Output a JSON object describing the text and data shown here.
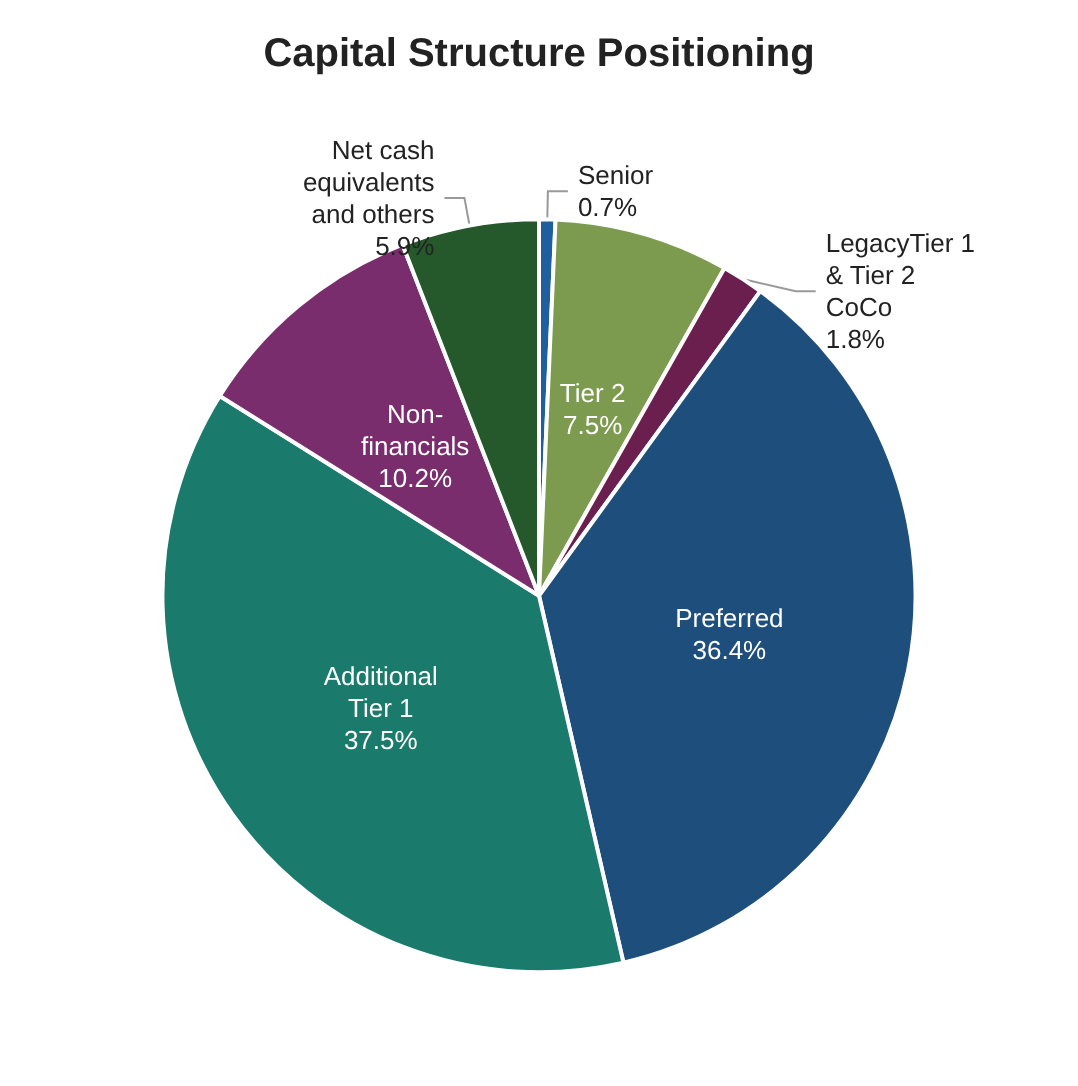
{
  "chart_data": {
    "type": "pie",
    "title": "Capital Structure Positioning",
    "categories": [
      "Senior",
      "Tier 2",
      "LegacyTier 1\n& Tier 2\nCoCo",
      "Preferred",
      "Additional\nTier 1",
      "Non-\nfinancials",
      "Net cash\nequivalents\nand others"
    ],
    "values": [
      0.7,
      7.5,
      1.8,
      36.4,
      37.5,
      10.2,
      5.9
    ],
    "colors": [
      "#1f5fa0",
      "#7d9b4e",
      "#6a1f4e",
      "#1d4e7c",
      "#1a7a6b",
      "#7a2d6c",
      "#25592b"
    ],
    "value_labels": [
      "0.7%",
      "7.5%",
      "1.8%",
      "36.4%",
      "37.5%",
      "10.2%",
      "5.9%"
    ]
  }
}
